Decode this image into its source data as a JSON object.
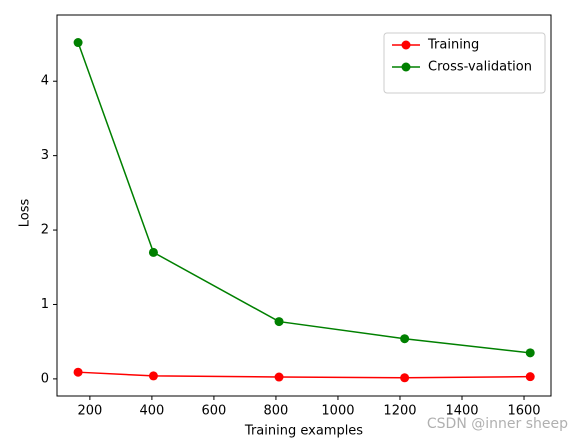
{
  "chart_data": {
    "type": "line",
    "x_label": "Training examples",
    "y_label": "Loss",
    "x": [
      162,
      405,
      810,
      1215,
      1620
    ],
    "series": [
      {
        "name": "Training",
        "color": "#ff0000",
        "values": [
          0.09,
          0.04,
          0.025,
          0.015,
          0.03
        ]
      },
      {
        "name": "Cross-validation",
        "color": "#008000",
        "values": [
          4.52,
          1.7,
          0.77,
          0.54,
          0.35
        ]
      }
    ],
    "xlim": [
      94,
      1687
    ],
    "ylim": [
      -0.23,
      4.89
    ],
    "xticks": [
      200,
      400,
      600,
      800,
      1000,
      1200,
      1400,
      1600
    ],
    "yticks": [
      0,
      1,
      2,
      3,
      4
    ],
    "legend": "upper right",
    "watermark": "CSDN @inner sheep"
  }
}
